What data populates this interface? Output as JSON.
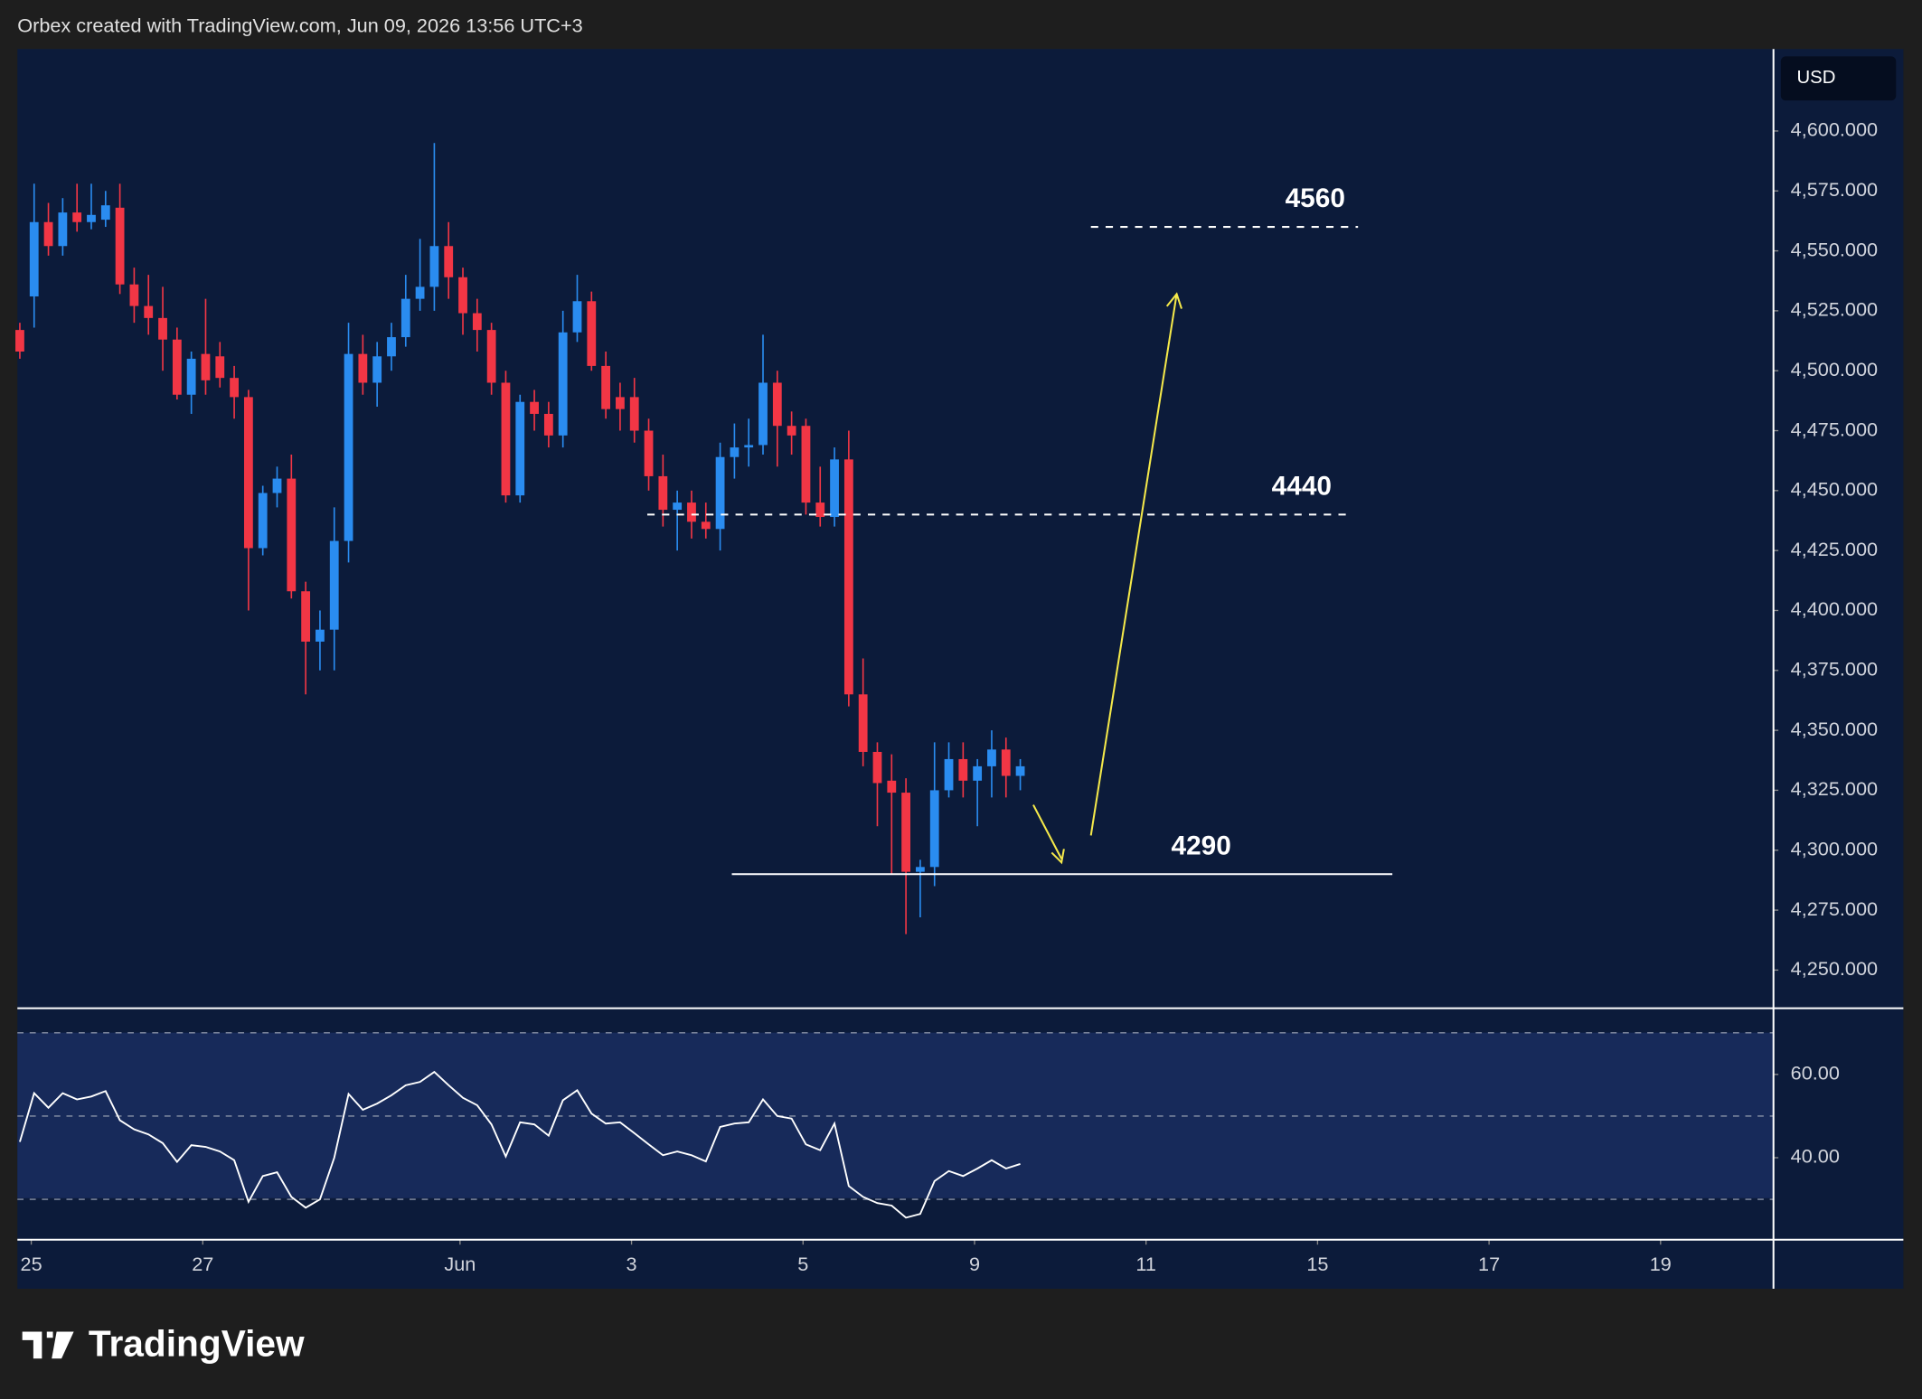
{
  "header": {
    "title": "Orbex created with TradingView.com, Jun 09, 2026 13:56 UTC+3",
    "currency": "USD",
    "brand": "TradingView"
  },
  "chart_data": [
    {
      "type": "candlestick",
      "open": [
        4517,
        4531,
        4562,
        4552,
        4566,
        4562,
        4563,
        4568,
        4536,
        4527,
        4522,
        4513,
        4490,
        4507,
        4506,
        4497,
        4489,
        4426,
        4449,
        4455,
        4408,
        4387,
        4392,
        4429,
        4507,
        4495,
        4506,
        4514,
        4530,
        4535,
        4552,
        4539,
        4524,
        4517,
        4495,
        4448,
        4487,
        4482,
        4473,
        4516,
        4529,
        4502,
        4489,
        4489,
        4475,
        4456,
        4442,
        4445,
        4437,
        4434,
        4464,
        4468,
        4469,
        4495,
        4477,
        4477,
        4445,
        4439,
        4463,
        4365,
        4341,
        4329,
        4324,
        4291,
        4293,
        4325,
        4338,
        4329,
        4335,
        4342,
        4331
      ],
      "high": [
        4520,
        4578,
        4570,
        4572,
        4578,
        4578,
        4575,
        4578,
        4543,
        4540,
        4535,
        4518,
        4508,
        4530,
        4512,
        4502,
        4492,
        4452,
        4460,
        4465,
        4412,
        4400,
        4443,
        4520,
        4515,
        4512,
        4520,
        4540,
        4555,
        4595,
        4562,
        4543,
        4530,
        4520,
        4500,
        4490,
        4492,
        4487,
        4525,
        4540,
        4533,
        4508,
        4495,
        4497,
        4480,
        4465,
        4450,
        4450,
        4445,
        4470,
        4478,
        4480,
        4515,
        4500,
        4483,
        4480,
        4460,
        4468,
        4475,
        4380,
        4345,
        4340,
        4330,
        4296,
        4345,
        4345,
        4345,
        4338,
        4350,
        4347,
        4338
      ],
      "low": [
        4505,
        4518,
        4548,
        4548,
        4558,
        4559,
        4560,
        4532,
        4520,
        4515,
        4500,
        4488,
        4482,
        4490,
        4493,
        4480,
        4400,
        4423,
        4443,
        4405,
        4365,
        4375,
        4375,
        4420,
        4490,
        4485,
        4500,
        4510,
        4525,
        4525,
        4530,
        4515,
        4508,
        4490,
        4445,
        4445,
        4475,
        4468,
        4468,
        4512,
        4500,
        4480,
        4475,
        4470,
        4450,
        4435,
        4425,
        4430,
        4430,
        4425,
        4455,
        4460,
        4465,
        4460,
        4465,
        4440,
        4435,
        4435,
        4360,
        4335,
        4310,
        4290,
        4265,
        4272,
        4285,
        4322,
        4322,
        4310,
        4322,
        4322,
        4325
      ],
      "close": [
        4508,
        4562,
        4552,
        4566,
        4562,
        4565,
        4569,
        4536,
        4527,
        4522,
        4513,
        4490,
        4505,
        4496,
        4497,
        4489,
        4426,
        4449,
        4455,
        4408,
        4387,
        4392,
        4429,
        4507,
        4495,
        4506,
        4514,
        4530,
        4535,
        4552,
        4539,
        4524,
        4517,
        4495,
        4448,
        4487,
        4482,
        4473,
        4516,
        4529,
        4502,
        4484,
        4484,
        4475,
        4456,
        4442,
        4445,
        4437,
        4434,
        4464,
        4468,
        4469,
        4495,
        4477,
        4473,
        4445,
        4439,
        4463,
        4365,
        4341,
        4328,
        4324,
        4291,
        4293,
        4325,
        4338,
        4329,
        4335,
        4342,
        4331,
        4335
      ],
      "up_color": "#2a8cf0",
      "down_color": "#f23645",
      "ylim": [
        4234.6,
        4634.2
      ],
      "yticks": [
        {
          "value": 4600,
          "label": "4,600.000"
        },
        {
          "value": 4575,
          "label": "4,575.000"
        },
        {
          "value": 4550,
          "label": "4,550.000"
        },
        {
          "value": 4525,
          "label": "4,525.000"
        },
        {
          "value": 4500,
          "label": "4,500.000"
        },
        {
          "value": 4475,
          "label": "4,475.000"
        },
        {
          "value": 4450,
          "label": "4,450.000"
        },
        {
          "value": 4425,
          "label": "4,425.000"
        },
        {
          "value": 4400,
          "label": "4,400.000"
        },
        {
          "value": 4375,
          "label": "4,375.000"
        },
        {
          "value": 4350,
          "label": "4,350.000"
        },
        {
          "value": 4325,
          "label": "4,325.000"
        },
        {
          "value": 4300,
          "label": "4,300.000"
        },
        {
          "value": 4275,
          "label": "4,275.000"
        },
        {
          "value": 4250,
          "label": "4,250.000"
        }
      ],
      "xlim": [
        -0.17,
        122.7
      ],
      "xticks": [
        {
          "value": 0.8,
          "label": "25"
        },
        {
          "value": 12.8,
          "label": "27"
        },
        {
          "value": 30.8,
          "label": "Jun"
        },
        {
          "value": 42.8,
          "label": "3"
        },
        {
          "value": 54.8,
          "label": "5"
        },
        {
          "value": 66.8,
          "label": "9"
        },
        {
          "value": 78.8,
          "label": "11"
        },
        {
          "value": 90.8,
          "label": "15"
        },
        {
          "value": 102.8,
          "label": "17"
        },
        {
          "value": 114.8,
          "label": "19"
        }
      ],
      "levels": [
        4560,
        4440,
        4290
      ]
    },
    {
      "type": "line",
      "series": [
        {
          "color": "#ffffff",
          "values": [
            43.8,
            55.5,
            52,
            55.5,
            54,
            54.7,
            56,
            49,
            46.8,
            45.6,
            43.5,
            39,
            43,
            42.6,
            41.5,
            39.4,
            29.4,
            35.6,
            36.5,
            30.6,
            28,
            30,
            40,
            55.3,
            51.5,
            53,
            55,
            57.4,
            58.2,
            60.6,
            57.4,
            54.4,
            52.6,
            48,
            40.3,
            48.5,
            48,
            45.3,
            53.8,
            56.2,
            50.6,
            48.2,
            48.5,
            45.9,
            43.2,
            40.6,
            41.5,
            40.6,
            39.1,
            47.4,
            48.2,
            48.5,
            54,
            50,
            49.4,
            43.2,
            41.8,
            48.2,
            33.2,
            30.6,
            29.1,
            28.5,
            25.6,
            26.5,
            34.4,
            36.8,
            35.6,
            37.4,
            39.4,
            37.4,
            38.5
          ]
        }
      ],
      "ylim": [
        20.3,
        75.9
      ],
      "yticks": [
        {
          "value": 60,
          "label": "60.00"
        },
        {
          "value": 40,
          "label": "40.00"
        }
      ],
      "levels": [
        70,
        50,
        30
      ]
    }
  ]
}
